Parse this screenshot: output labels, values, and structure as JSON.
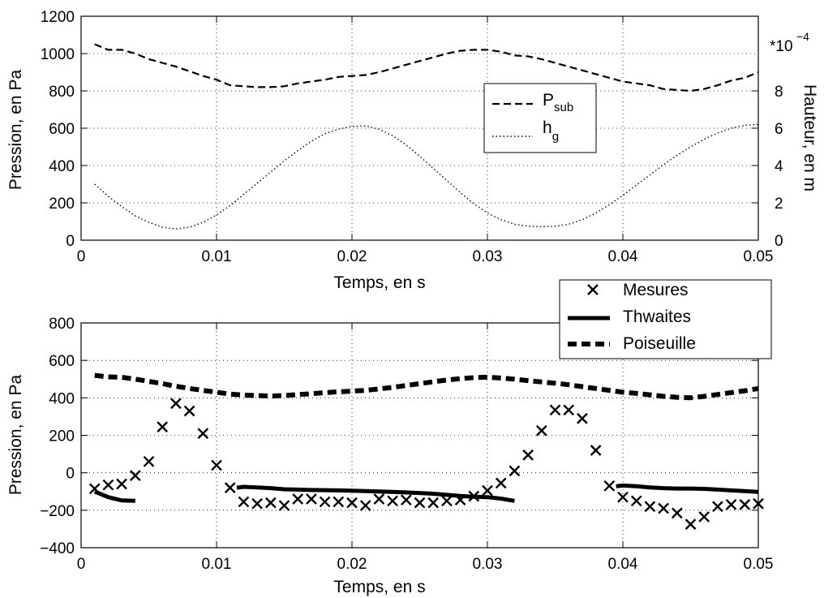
{
  "chart_data": [
    {
      "type": "line",
      "xlabel": "Temps, en s",
      "ylabel": "Pression, en Pa",
      "ylabel_right": "Hauteur, en m",
      "right_axis_multiplier_base": "*10",
      "right_axis_multiplier_exp": "−4",
      "xlim": [
        0,
        0.05
      ],
      "ylim": [
        0,
        1200
      ],
      "ylim_right": [
        0,
        12
      ],
      "x_ticks": [
        "0",
        "0.01",
        "0.02",
        "0.03",
        "0.04",
        "0.05"
      ],
      "y_ticks": [
        "0",
        "200",
        "400",
        "600",
        "800",
        "1000",
        "1200"
      ],
      "y_ticks_right": [
        "0",
        "2",
        "4",
        "6",
        "8"
      ],
      "grid": true,
      "legend_position": "center-right",
      "series": [
        {
          "name_main": "P",
          "name_sub": "sub",
          "style": "dashed",
          "axis": "left",
          "x": [
            0.001,
            0.002,
            0.003,
            0.004,
            0.005,
            0.006,
            0.007,
            0.008,
            0.009,
            0.01,
            0.011,
            0.012,
            0.013,
            0.014,
            0.015,
            0.016,
            0.017,
            0.018,
            0.019,
            0.02,
            0.021,
            0.022,
            0.023,
            0.024,
            0.025,
            0.026,
            0.027,
            0.028,
            0.029,
            0.03,
            0.031,
            0.032,
            0.033,
            0.034,
            0.035,
            0.036,
            0.037,
            0.038,
            0.039,
            0.04,
            0.041,
            0.042,
            0.043,
            0.044,
            0.045,
            0.046,
            0.047,
            0.048,
            0.049,
            0.05
          ],
          "y": [
            1050,
            1020,
            1020,
            1000,
            970,
            950,
            930,
            905,
            880,
            860,
            830,
            825,
            820,
            820,
            825,
            840,
            850,
            860,
            875,
            880,
            885,
            900,
            920,
            940,
            960,
            980,
            1000,
            1015,
            1020,
            1020,
            1010,
            990,
            985,
            970,
            950,
            930,
            910,
            890,
            870,
            850,
            840,
            830,
            810,
            805,
            800,
            810,
            830,
            855,
            870,
            900
          ]
        },
        {
          "name_main": "h",
          "name_sub": "g",
          "style": "dotted",
          "axis": "right",
          "x": [
            0.001,
            0.002,
            0.003,
            0.004,
            0.005,
            0.006,
            0.007,
            0.008,
            0.009,
            0.01,
            0.011,
            0.012,
            0.013,
            0.014,
            0.015,
            0.016,
            0.017,
            0.018,
            0.019,
            0.02,
            0.021,
            0.022,
            0.023,
            0.024,
            0.025,
            0.026,
            0.027,
            0.028,
            0.029,
            0.03,
            0.031,
            0.032,
            0.033,
            0.034,
            0.035,
            0.036,
            0.037,
            0.038,
            0.039,
            0.04,
            0.041,
            0.042,
            0.043,
            0.044,
            0.045,
            0.046,
            0.047,
            0.048,
            0.049,
            0.05
          ],
          "y": [
            3.0,
            2.35,
            1.8,
            1.3,
            0.95,
            0.7,
            0.6,
            0.7,
            0.95,
            1.35,
            1.85,
            2.45,
            3.05,
            3.65,
            4.25,
            4.8,
            5.3,
            5.7,
            5.95,
            6.1,
            6.12,
            5.95,
            5.6,
            5.1,
            4.5,
            3.85,
            3.2,
            2.55,
            1.95,
            1.45,
            1.1,
            0.85,
            0.75,
            0.72,
            0.75,
            0.85,
            1.1,
            1.45,
            1.9,
            2.4,
            2.95,
            3.5,
            4.05,
            4.55,
            5.0,
            5.4,
            5.75,
            6.0,
            6.15,
            6.2
          ]
        }
      ]
    },
    {
      "type": "line",
      "xlabel": "Temps, en s",
      "ylabel": "Pression, en Pa",
      "xlim": [
        0,
        0.05
      ],
      "ylim": [
        -400,
        800
      ],
      "x_ticks": [
        "0",
        "0.01",
        "0.02",
        "0.03",
        "0.04",
        "0.05"
      ],
      "y_ticks": [
        "−400",
        "−200",
        "0",
        "200",
        "400",
        "600",
        "800"
      ],
      "grid": true,
      "legend_position": "top-right",
      "series": [
        {
          "name": "Mesures",
          "style": "x-markers",
          "x": [
            0.001,
            0.002,
            0.003,
            0.004,
            0.005,
            0.006,
            0.007,
            0.008,
            0.009,
            0.01,
            0.011,
            0.012,
            0.013,
            0.014,
            0.015,
            0.016,
            0.017,
            0.018,
            0.019,
            0.02,
            0.021,
            0.022,
            0.023,
            0.024,
            0.025,
            0.026,
            0.027,
            0.028,
            0.029,
            0.03,
            0.031,
            0.032,
            0.033,
            0.034,
            0.035,
            0.036,
            0.037,
            0.038,
            0.039,
            0.04,
            0.041,
            0.042,
            0.043,
            0.044,
            0.045,
            0.046,
            0.047,
            0.048,
            0.049,
            0.05
          ],
          "y": [
            -85,
            -65,
            -60,
            -15,
            60,
            245,
            370,
            330,
            210,
            40,
            -80,
            -155,
            -165,
            -160,
            -175,
            -140,
            -140,
            -155,
            -155,
            -160,
            -175,
            -140,
            -150,
            -145,
            -160,
            -160,
            -150,
            -145,
            -125,
            -95,
            -55,
            10,
            95,
            225,
            335,
            335,
            290,
            120,
            -70,
            -130,
            -150,
            -180,
            -190,
            -215,
            -275,
            -235,
            -180,
            -170,
            -170,
            -165
          ]
        },
        {
          "name": "Thwaites",
          "style": "solid-thick",
          "segments": [
            {
              "x": [
                0.001,
                0.002,
                0.003,
                0.004
              ],
              "y": [
                -100,
                -130,
                -148,
                -150
              ]
            },
            {
              "x": [
                0.0115,
                0.012,
                0.013,
                0.014,
                0.015,
                0.016,
                0.017,
                0.018,
                0.019,
                0.02,
                0.021,
                0.022,
                0.023,
                0.024,
                0.025,
                0.026,
                0.027,
                0.028,
                0.029,
                0.03,
                0.031,
                0.032
              ],
              "y": [
                -80,
                -75,
                -78,
                -82,
                -88,
                -90,
                -92,
                -93,
                -94,
                -96,
                -98,
                -100,
                -102,
                -105,
                -108,
                -112,
                -118,
                -124,
                -128,
                -130,
                -138,
                -150
              ]
            },
            {
              "x": [
                0.0395,
                0.04,
                0.041,
                0.042,
                0.043,
                0.044,
                0.045,
                0.046,
                0.047,
                0.048,
                0.049,
                0.05
              ],
              "y": [
                -72,
                -68,
                -72,
                -78,
                -82,
                -84,
                -84,
                -86,
                -90,
                -94,
                -98,
                -102
              ]
            }
          ]
        },
        {
          "name": "Poiseuille",
          "style": "dashed-thick",
          "x": [
            0.001,
            0.002,
            0.003,
            0.004,
            0.005,
            0.006,
            0.007,
            0.008,
            0.009,
            0.01,
            0.011,
            0.012,
            0.013,
            0.014,
            0.015,
            0.016,
            0.017,
            0.018,
            0.019,
            0.02,
            0.021,
            0.022,
            0.023,
            0.024,
            0.025,
            0.026,
            0.027,
            0.028,
            0.029,
            0.03,
            0.031,
            0.032,
            0.033,
            0.034,
            0.035,
            0.036,
            0.037,
            0.038,
            0.039,
            0.04,
            0.041,
            0.042,
            0.043,
            0.044,
            0.045,
            0.046,
            0.047,
            0.048,
            0.049,
            0.05
          ],
          "y": [
            520,
            512,
            510,
            500,
            488,
            476,
            462,
            450,
            440,
            430,
            420,
            415,
            412,
            410,
            412,
            418,
            422,
            428,
            432,
            436,
            440,
            448,
            456,
            466,
            476,
            486,
            495,
            503,
            508,
            510,
            506,
            500,
            492,
            485,
            478,
            470,
            460,
            450,
            440,
            430,
            424,
            416,
            408,
            403,
            400,
            408,
            418,
            428,
            438,
            450
          ]
        }
      ]
    }
  ]
}
